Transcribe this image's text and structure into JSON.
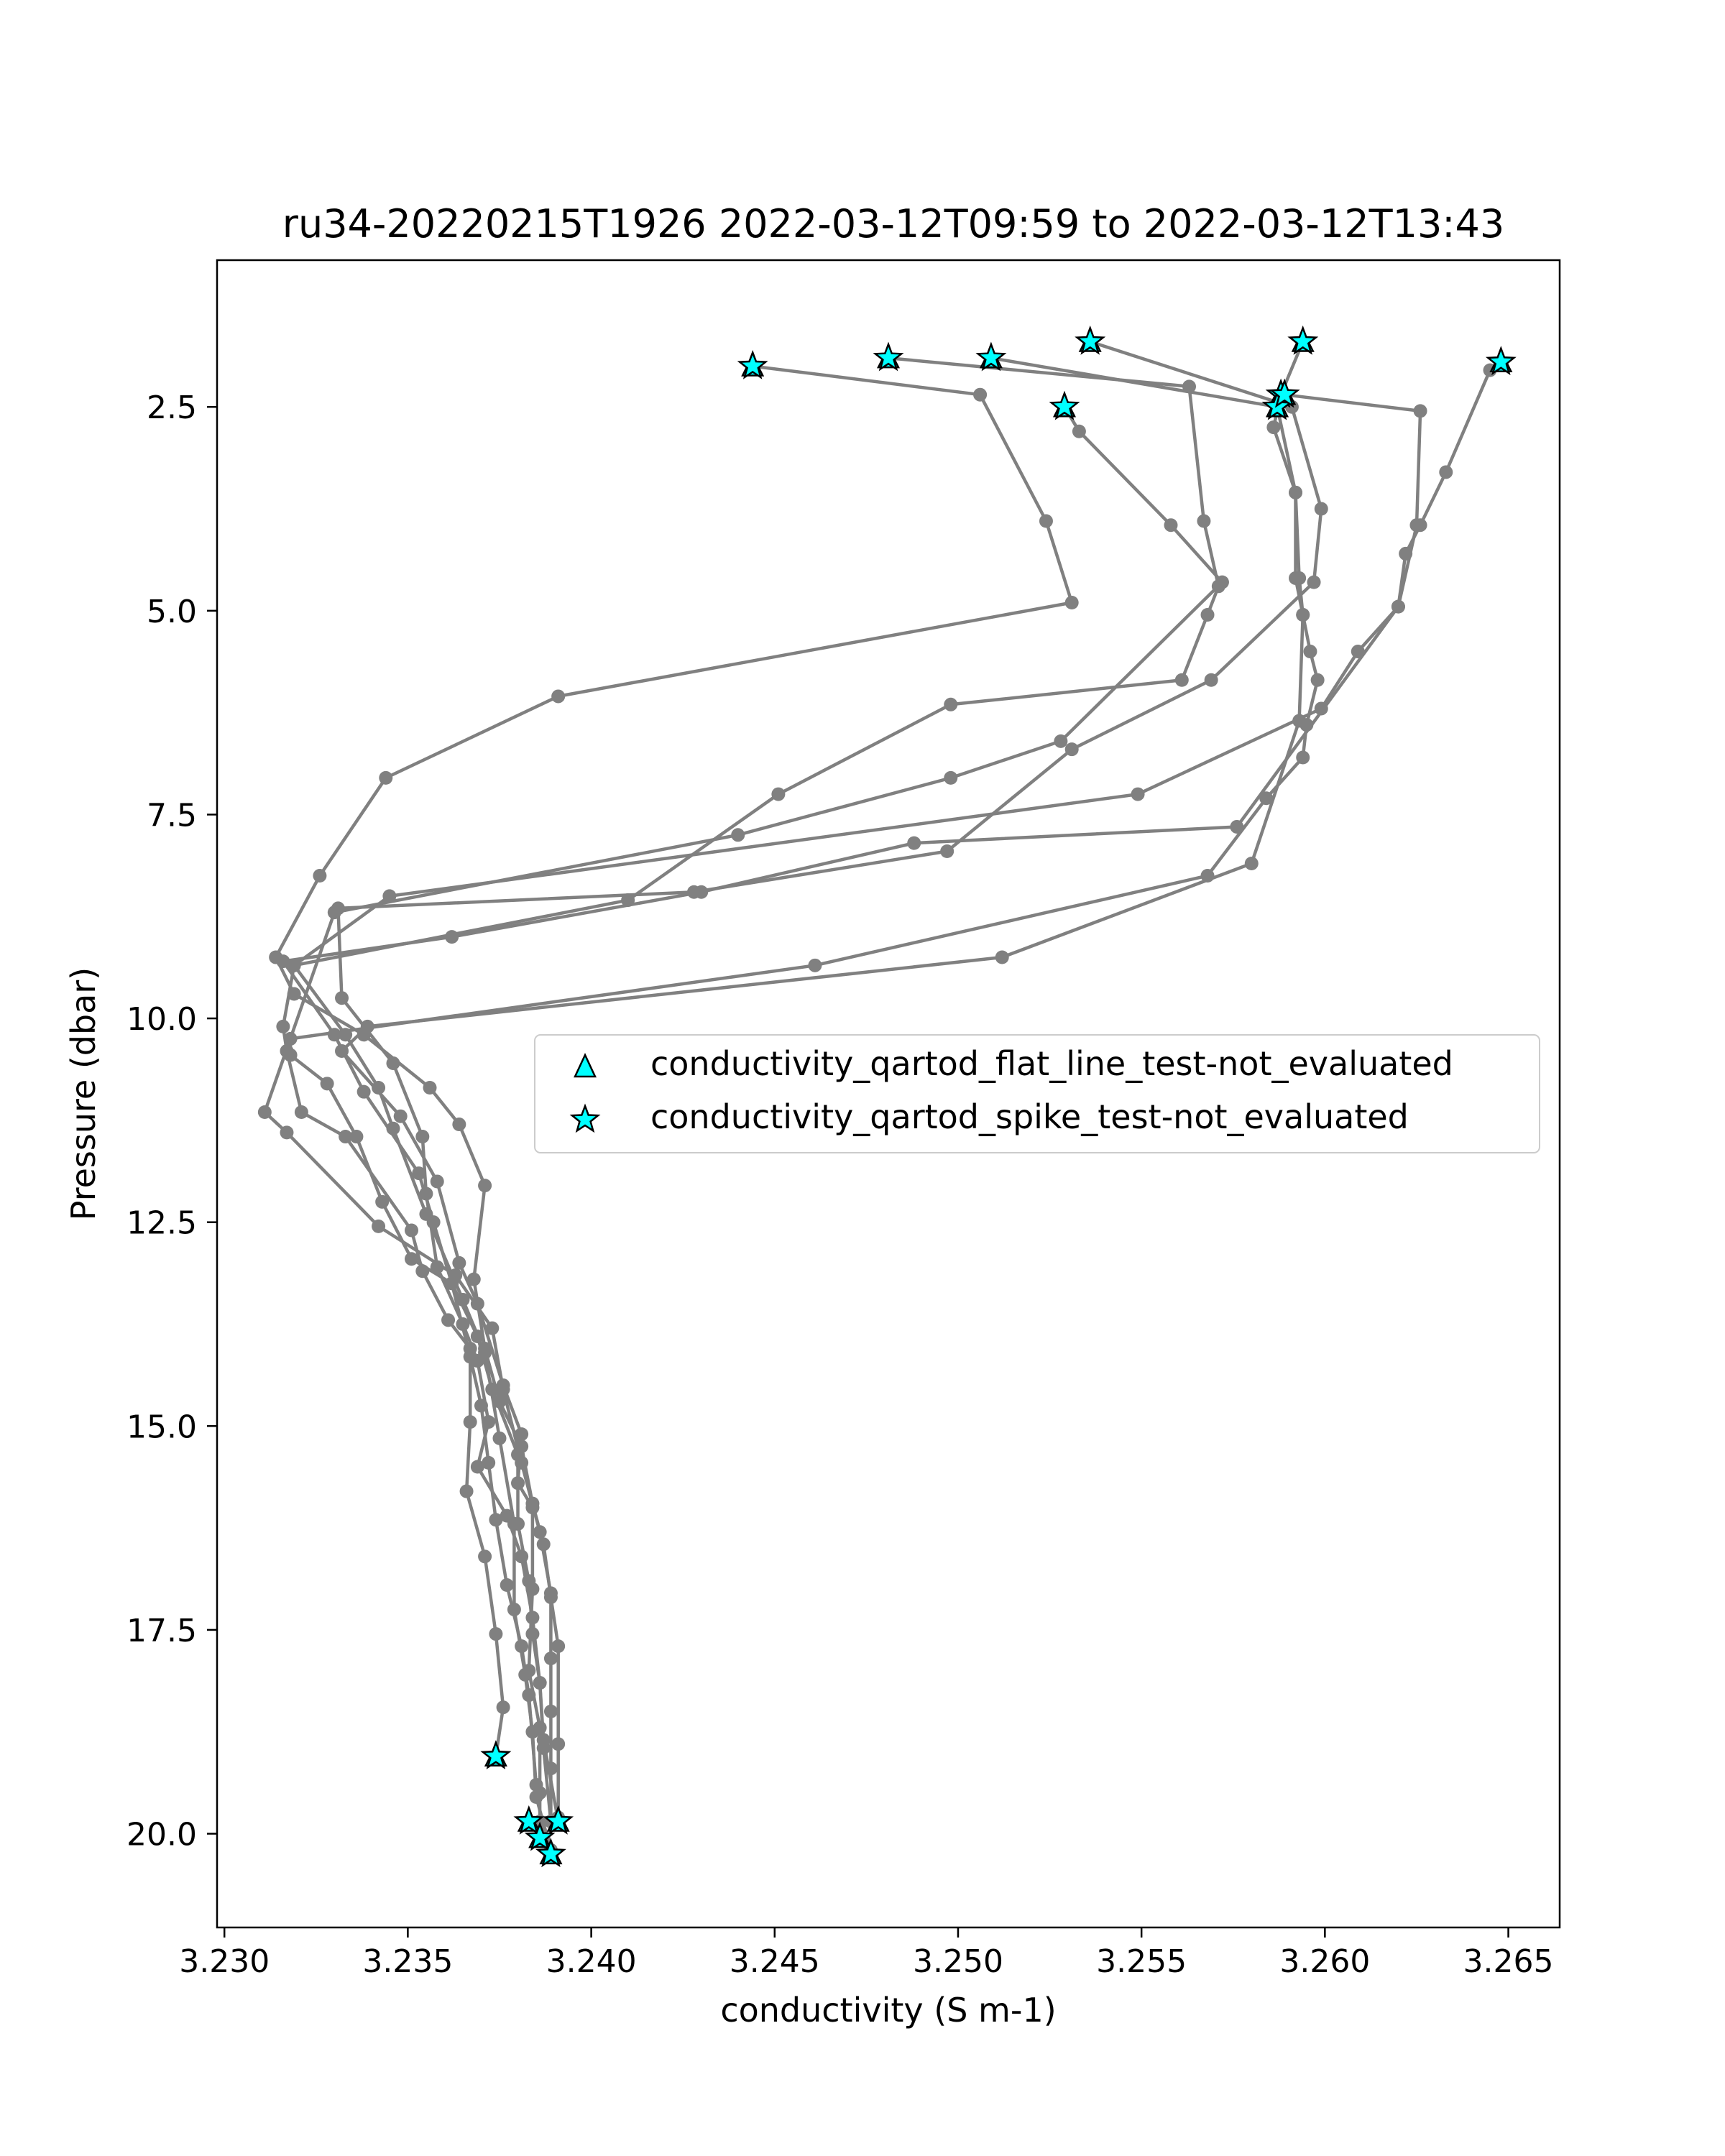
{
  "chart_data": {
    "type": "scatter",
    "title": "ru34-20220215T1926 2022-03-12T09:59 to 2022-03-12T13:43",
    "xlabel": "conductivity (S m-1)",
    "ylabel": "Pressure (dbar)",
    "xlim": [
      3.2298,
      3.2664
    ],
    "ylim": [
      21.15,
      0.7
    ],
    "y_inverted": true,
    "grid": false,
    "xticks": [
      3.23,
      3.235,
      3.24,
      3.245,
      3.25,
      3.255,
      3.26,
      3.265
    ],
    "xtick_labels": [
      "3.230",
      "3.235",
      "3.240",
      "3.245",
      "3.250",
      "3.255",
      "3.260",
      "3.265"
    ],
    "yticks": [
      2.5,
      5.0,
      7.5,
      10.0,
      12.5,
      15.0,
      17.5,
      20.0
    ],
    "ytick_labels": [
      "2.5",
      "5.0",
      "7.5",
      "10.0",
      "12.5",
      "15.0",
      "17.5",
      "20.0"
    ],
    "line_color": "#808080",
    "marker_color": "#00ffff",
    "legend_position": "center-right",
    "legend": [
      {
        "marker": "triangle",
        "label": "conductivity_qartod_flat_line_test-not_evaluated"
      },
      {
        "marker": "star",
        "label": "conductivity_qartod_spike_test-not_evaluated"
      }
    ],
    "series": [
      {
        "points": [
          [
            3.2444,
            2.0
          ],
          [
            3.2506,
            2.35
          ],
          [
            3.2524,
            3.9
          ],
          [
            3.2531,
            4.9
          ],
          [
            3.2391,
            6.05
          ],
          [
            3.2344,
            7.05
          ],
          [
            3.2326,
            8.25
          ],
          [
            3.2314,
            9.25
          ],
          [
            3.2319,
            9.7
          ],
          [
            3.2338,
            10.2
          ],
          [
            3.2356,
            10.85
          ],
          [
            3.2364,
            11.3
          ],
          [
            3.2371,
            12.05
          ],
          [
            3.2368,
            13.2
          ],
          [
            3.2371,
            14.05
          ],
          [
            3.2375,
            14.7
          ],
          [
            3.2381,
            15.25
          ],
          [
            3.2384,
            15.95
          ],
          [
            3.2387,
            16.45
          ],
          [
            3.2389,
            17.1
          ],
          [
            3.2391,
            17.7
          ],
          [
            3.2391,
            18.9
          ],
          [
            3.2391,
            19.8
          ]
        ]
      },
      {
        "points": [
          [
            3.2481,
            1.9
          ],
          [
            3.2563,
            2.25
          ],
          [
            3.2567,
            3.9
          ],
          [
            3.2571,
            4.7
          ],
          [
            3.2568,
            5.05
          ],
          [
            3.2561,
            5.85
          ],
          [
            3.2498,
            6.15
          ],
          [
            3.2451,
            7.25
          ],
          [
            3.241,
            8.55
          ],
          [
            3.2319,
            9.35
          ],
          [
            3.2316,
            10.1
          ],
          [
            3.2317,
            10.4
          ],
          [
            3.2321,
            11.15
          ],
          [
            3.2333,
            11.45
          ],
          [
            3.2351,
            12.6
          ],
          [
            3.2354,
            13.1
          ],
          [
            3.2361,
            13.7
          ],
          [
            3.2367,
            14.05
          ],
          [
            3.2367,
            14.95
          ],
          [
            3.2366,
            15.8
          ],
          [
            3.2371,
            16.6
          ],
          [
            3.2374,
            17.55
          ],
          [
            3.2376,
            18.45
          ],
          [
            3.2374,
            19.05
          ]
        ]
      },
      {
        "points": [
          [
            3.2509,
            1.9
          ],
          [
            3.2587,
            2.5
          ],
          [
            3.2592,
            3.55
          ],
          [
            3.2592,
            4.6
          ],
          [
            3.2594,
            5.05
          ],
          [
            3.2593,
            6.35
          ],
          [
            3.258,
            8.1
          ],
          [
            3.2512,
            9.25
          ],
          [
            3.2339,
            10.1
          ],
          [
            3.2332,
            10.4
          ],
          [
            3.2348,
            11.2
          ],
          [
            3.2358,
            12.0
          ],
          [
            3.2364,
            13.0
          ],
          [
            3.2369,
            13.5
          ],
          [
            3.2376,
            14.5
          ],
          [
            3.2381,
            15.1
          ],
          [
            3.238,
            15.7
          ],
          [
            3.2384,
            16.0
          ],
          [
            3.2384,
            17.0
          ],
          [
            3.2383,
            18.0
          ],
          [
            3.2386,
            18.7
          ],
          [
            3.2386,
            19.5
          ],
          [
            3.2386,
            19.85
          ]
        ]
      },
      {
        "points": [
          [
            3.2536,
            1.7
          ],
          [
            3.2591,
            2.5
          ],
          [
            3.2599,
            3.75
          ],
          [
            3.2597,
            4.65
          ],
          [
            3.2569,
            5.85
          ],
          [
            3.2531,
            6.7
          ],
          [
            3.2497,
            7.95
          ],
          [
            3.2428,
            8.45
          ],
          [
            3.2331,
            8.65
          ],
          [
            3.2332,
            9.75
          ],
          [
            3.2346,
            10.55
          ],
          [
            3.2354,
            11.45
          ],
          [
            3.2355,
            12.15
          ],
          [
            3.2358,
            13.05
          ],
          [
            3.2365,
            13.75
          ],
          [
            3.2369,
            14.2
          ],
          [
            3.2372,
            14.95
          ],
          [
            3.2369,
            15.5
          ],
          [
            3.2377,
            16.1
          ],
          [
            3.2381,
            16.6
          ],
          [
            3.2384,
            17.35
          ],
          [
            3.2386,
            18.15
          ],
          [
            3.2387,
            18.95
          ],
          [
            3.2389,
            19.85
          ]
        ]
      },
      {
        "points": [
          [
            3.2594,
            1.7
          ],
          [
            3.2588,
            2.35
          ],
          [
            3.2586,
            2.75
          ],
          [
            3.2592,
            3.55
          ],
          [
            3.2593,
            4.6
          ],
          [
            3.2594,
            5.05
          ],
          [
            3.2596,
            5.5
          ],
          [
            3.2598,
            5.85
          ],
          [
            3.2595,
            6.4
          ],
          [
            3.2594,
            6.8
          ],
          [
            3.2584,
            7.3
          ],
          [
            3.2568,
            8.25
          ],
          [
            3.2461,
            9.35
          ],
          [
            3.2318,
            10.25
          ],
          [
            3.2318,
            10.45
          ],
          [
            3.2328,
            10.8
          ],
          [
            3.2336,
            11.45
          ],
          [
            3.2343,
            12.25
          ],
          [
            3.2351,
            12.95
          ],
          [
            3.2362,
            13.25
          ],
          [
            3.2367,
            14.15
          ],
          [
            3.237,
            14.75
          ],
          [
            3.2372,
            15.45
          ],
          [
            3.2374,
            16.15
          ],
          [
            3.2377,
            16.95
          ],
          [
            3.2381,
            17.7
          ],
          [
            3.2383,
            18.3
          ],
          [
            3.2385,
            19.4
          ],
          [
            3.2387,
            20.05
          ]
        ]
      },
      {
        "points": [
          [
            3.2648,
            1.95
          ],
          [
            3.2645,
            2.05
          ],
          [
            3.2633,
            3.3
          ],
          [
            3.2626,
            3.95
          ],
          [
            3.2622,
            4.3
          ],
          [
            3.262,
            4.95
          ],
          [
            3.2609,
            5.5
          ],
          [
            3.2599,
            6.2
          ],
          [
            3.2549,
            7.25
          ],
          [
            3.2345,
            8.5
          ],
          [
            3.2319,
            9.35
          ],
          [
            3.2333,
            10.2
          ],
          [
            3.2342,
            10.85
          ],
          [
            3.2346,
            11.35
          ],
          [
            3.2355,
            12.4
          ],
          [
            3.2365,
            13.45
          ],
          [
            3.2371,
            14.1
          ],
          [
            3.2375,
            15.15
          ],
          [
            3.2379,
            16.2
          ],
          [
            3.2379,
            17.25
          ],
          [
            3.2382,
            18.05
          ],
          [
            3.2384,
            18.75
          ],
          [
            3.2385,
            19.55
          ],
          [
            3.2389,
            20.2
          ]
        ]
      },
      {
        "points": [
          [
            3.2529,
            2.5
          ],
          [
            3.2533,
            2.8
          ],
          [
            3.2558,
            3.95
          ],
          [
            3.2572,
            4.65
          ],
          [
            3.2528,
            6.6
          ],
          [
            3.2498,
            7.05
          ],
          [
            3.244,
            7.75
          ],
          [
            3.233,
            8.7
          ],
          [
            3.2311,
            11.15
          ],
          [
            3.2317,
            11.4
          ],
          [
            3.2342,
            12.55
          ],
          [
            3.2363,
            13.15
          ],
          [
            3.2373,
            13.8
          ],
          [
            3.2376,
            14.55
          ],
          [
            3.2381,
            15.45
          ],
          [
            3.2386,
            16.3
          ],
          [
            3.2389,
            17.05
          ],
          [
            3.2389,
            17.85
          ],
          [
            3.2389,
            18.5
          ],
          [
            3.2389,
            19.2
          ],
          [
            3.2389,
            19.85
          ]
        ]
      },
      {
        "points": [
          [
            3.2589,
            2.35
          ],
          [
            3.2626,
            2.55
          ],
          [
            3.2625,
            3.95
          ],
          [
            3.262,
            4.95
          ],
          [
            3.2576,
            7.65
          ],
          [
            3.2488,
            7.85
          ],
          [
            3.243,
            8.45
          ],
          [
            3.2362,
            9.0
          ],
          [
            3.2316,
            9.3
          ],
          [
            3.233,
            10.2
          ],
          [
            3.2338,
            10.9
          ],
          [
            3.2353,
            11.9
          ],
          [
            3.2357,
            12.5
          ],
          [
            3.2362,
            13.25
          ],
          [
            3.2369,
            13.9
          ],
          [
            3.2373,
            14.55
          ],
          [
            3.238,
            15.35
          ],
          [
            3.238,
            16.2
          ],
          [
            3.2383,
            16.9
          ],
          [
            3.2384,
            17.55
          ],
          [
            3.2386,
            18.15
          ],
          [
            3.2387,
            18.85
          ],
          [
            3.2391,
            19.85
          ]
        ]
      }
    ],
    "flat_line_test_not_evaluated": [
      [
        3.2444,
        2.0
      ],
      [
        3.2481,
        1.9
      ],
      [
        3.2509,
        1.9
      ],
      [
        3.2536,
        1.7
      ],
      [
        3.2594,
        1.7
      ],
      [
        3.2648,
        1.95
      ],
      [
        3.2529,
        2.5
      ],
      [
        3.2588,
        2.35
      ],
      [
        3.2587,
        2.5
      ],
      [
        3.2589,
        2.35
      ],
      [
        3.2374,
        19.05
      ],
      [
        3.2383,
        19.85
      ],
      [
        3.2391,
        19.85
      ],
      [
        3.2386,
        20.05
      ],
      [
        3.2389,
        20.25
      ]
    ],
    "spike_test_not_evaluated": [
      [
        3.2444,
        2.0
      ],
      [
        3.2481,
        1.9
      ],
      [
        3.2509,
        1.9
      ],
      [
        3.2536,
        1.7
      ],
      [
        3.2594,
        1.7
      ],
      [
        3.2648,
        1.95
      ],
      [
        3.2529,
        2.5
      ],
      [
        3.2588,
        2.35
      ],
      [
        3.2587,
        2.5
      ],
      [
        3.2589,
        2.35
      ],
      [
        3.2374,
        19.05
      ],
      [
        3.2383,
        19.85
      ],
      [
        3.2391,
        19.85
      ],
      [
        3.2386,
        20.05
      ],
      [
        3.2389,
        20.25
      ]
    ]
  }
}
